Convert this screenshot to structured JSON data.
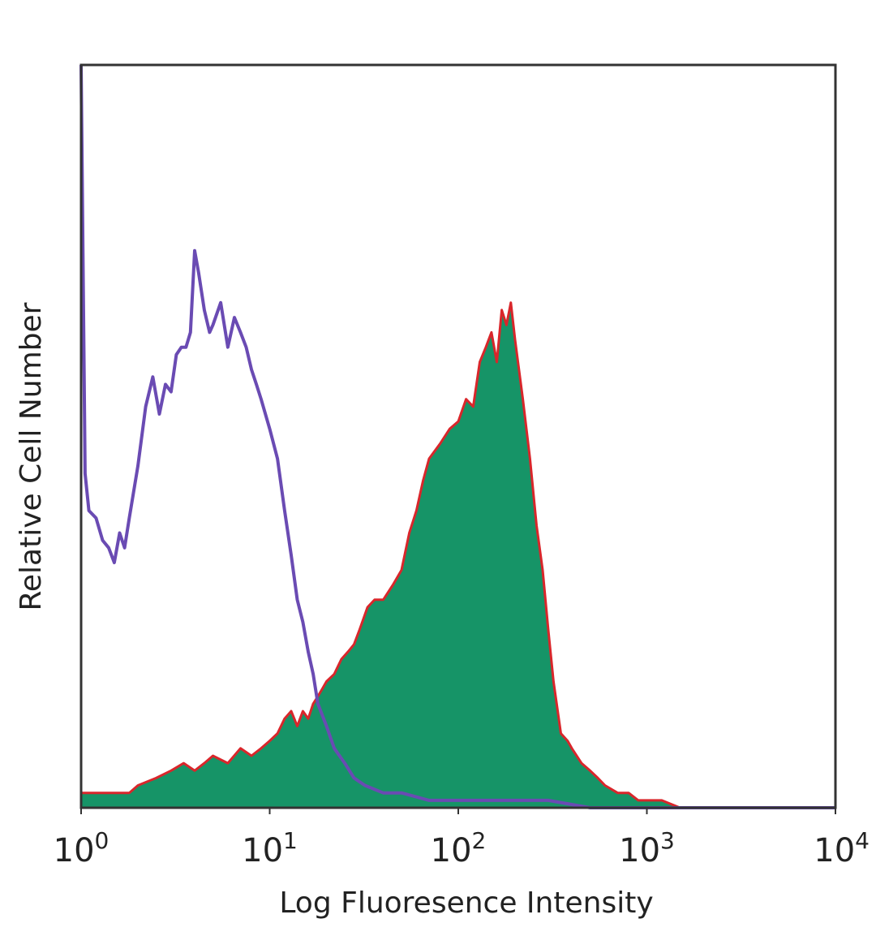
{
  "chart_data": {
    "type": "area",
    "title": "",
    "xlabel": "Log Fluoresence Intensity",
    "ylabel": "Relative Cell Number",
    "x_scale": "log",
    "xlim": [
      1,
      10000
    ],
    "ylim": [
      0,
      100
    ],
    "x_ticks": [
      {
        "base": "10",
        "exp": "0",
        "value": 1
      },
      {
        "base": "10",
        "exp": "1",
        "value": 10
      },
      {
        "base": "10",
        "exp": "2",
        "value": 100
      },
      {
        "base": "10",
        "exp": "3",
        "value": 1000
      },
      {
        "base": "10",
        "exp": "4",
        "value": 10000
      }
    ],
    "grid": false,
    "legend": "none",
    "series": [
      {
        "style": "filled-area",
        "fill_color": "#169467",
        "edge_color": "#d9262b",
        "x": [
          1,
          1.2,
          1.5,
          1.8,
          2,
          2.5,
          3,
          3.5,
          4,
          4.5,
          5,
          6,
          7,
          8,
          9,
          10,
          11,
          12,
          13,
          14,
          15,
          16,
          17,
          18,
          19,
          20,
          22,
          24,
          26,
          28,
          30,
          33,
          36,
          40,
          45,
          50,
          55,
          60,
          65,
          70,
          80,
          90,
          100,
          110,
          120,
          130,
          140,
          150,
          160,
          170,
          180,
          190,
          200,
          220,
          240,
          260,
          280,
          300,
          320,
          350,
          380,
          400,
          450,
          500,
          550,
          600,
          700,
          800,
          900,
          1000,
          1200,
          1500,
          2000,
          10000
        ],
        "y": [
          2,
          2,
          2,
          2,
          3,
          4,
          5,
          6,
          5,
          6,
          7,
          6,
          8,
          7,
          8,
          9,
          10,
          12,
          13,
          11,
          13,
          12,
          14,
          15,
          16,
          17,
          18,
          20,
          21,
          22,
          24,
          27,
          28,
          28,
          30,
          32,
          37,
          40,
          44,
          47,
          49,
          51,
          52,
          55,
          54,
          60,
          62,
          64,
          60,
          67,
          65,
          68,
          63,
          55,
          47,
          38,
          32,
          24,
          17,
          10,
          9,
          8,
          6,
          5,
          4,
          3,
          2,
          2,
          1,
          1,
          1,
          0,
          0,
          0
        ]
      },
      {
        "style": "outline",
        "line_color": "#6a4bb3",
        "x": [
          1,
          1.05,
          1.1,
          1.2,
          1.3,
          1.4,
          1.5,
          1.6,
          1.7,
          1.8,
          2,
          2.2,
          2.4,
          2.6,
          2.8,
          3,
          3.2,
          3.4,
          3.6,
          3.8,
          4,
          4.2,
          4.5,
          4.8,
          5,
          5.5,
          6,
          6.5,
          7,
          7.5,
          8,
          8.5,
          9,
          10,
          11,
          12,
          13,
          14,
          15,
          16,
          17,
          18,
          20,
          22,
          25,
          28,
          32,
          40,
          50,
          70,
          100,
          150,
          200,
          300,
          500,
          700,
          1000,
          10000
        ],
        "y": [
          100,
          45,
          40,
          39,
          36,
          35,
          33,
          37,
          35,
          39,
          46,
          54,
          58,
          53,
          57,
          56,
          61,
          62,
          62,
          64,
          75,
          72,
          67,
          64,
          65,
          68,
          62,
          66,
          64,
          62,
          59,
          57,
          55,
          51,
          47,
          40,
          34,
          28,
          25,
          21,
          18,
          14,
          11,
          8,
          6,
          4,
          3,
          2,
          2,
          1,
          1,
          1,
          1,
          1,
          0,
          0,
          0,
          0
        ]
      }
    ]
  }
}
